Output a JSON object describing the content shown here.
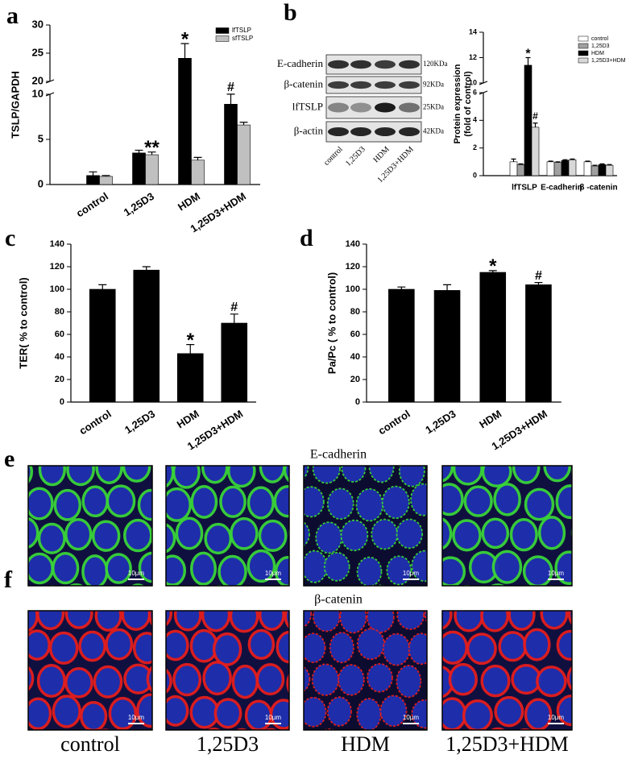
{
  "chart_data": [
    {
      "type": "bar",
      "panel": "a",
      "ylabel": "TSLP/GAPDH",
      "categories": [
        "control",
        "1,25D3",
        "HDM",
        "1,25D3+HDM"
      ],
      "series": [
        {
          "name": "lfTSLP",
          "color": "#000000",
          "values": [
            1.0,
            3.5,
            24.1,
            8.9
          ],
          "errors": [
            0.4,
            0.3,
            2.6,
            1.2
          ],
          "annotations": [
            null,
            null,
            "*",
            "#"
          ]
        },
        {
          "name": "sfTSLP",
          "color": "#c0c0c0",
          "values": [
            0.9,
            3.3,
            2.7,
            6.6
          ],
          "errors": [
            0.1,
            0.3,
            0.3,
            0.3
          ],
          "annotations": [
            null,
            "**",
            null,
            null
          ]
        }
      ],
      "ylim": [
        0,
        30
      ],
      "ybreak": [
        10,
        20
      ],
      "yticks": [
        0,
        5,
        10,
        20,
        25,
        30
      ]
    },
    {
      "type": "bar",
      "panel": "b",
      "ylabel": [
        "Protein expression",
        "(fold of control)"
      ],
      "categories": [
        "lfTSLP",
        "E-cadherin",
        "β -catenin"
      ],
      "series": [
        {
          "name": "control",
          "color": "#ffffff",
          "values": [
            1.0,
            1.0,
            1.0
          ],
          "errors": [
            0.2,
            0.05,
            0.05
          ],
          "annotations": [
            null,
            null,
            null
          ]
        },
        {
          "name": "1,25D3",
          "color": "#a0a0a0",
          "values": [
            0.8,
            0.95,
            0.7
          ],
          "errors": [
            0.05,
            0.05,
            0.05
          ],
          "annotations": [
            null,
            null,
            null
          ]
        },
        {
          "name": "HDM",
          "color": "#000000",
          "values": [
            11.4,
            1.1,
            0.8
          ],
          "errors": [
            0.6,
            0.05,
            0.05
          ],
          "annotations": [
            "*",
            null,
            null
          ]
        },
        {
          "name": "1,25D3+HDM",
          "color": "#d8d8d8",
          "values": [
            3.5,
            1.15,
            0.75
          ],
          "errors": [
            0.3,
            0.05,
            0.05
          ],
          "annotations": [
            "#",
            null,
            null
          ]
        }
      ],
      "ylim": [
        0,
        14
      ],
      "ybreak": [
        6,
        10
      ],
      "yticks": [
        0,
        2,
        4,
        6,
        10,
        12,
        14
      ]
    },
    {
      "type": "bar",
      "panel": "c",
      "ylabel": "TER( %  to  control)",
      "categories": [
        "control",
        "1,25D3",
        "HDM",
        "1,25D3+HDM"
      ],
      "series": [
        {
          "name": null,
          "color": "#000000",
          "values": [
            100,
            117,
            43,
            70
          ],
          "errors": [
            4,
            3,
            8,
            8
          ],
          "annotations": [
            null,
            null,
            "*",
            "#"
          ]
        }
      ],
      "ylim": [
        0,
        140
      ],
      "yticks": [
        0,
        20,
        40,
        60,
        80,
        100,
        120,
        140
      ]
    },
    {
      "type": "bar",
      "panel": "d",
      "ylabel": "Pa/Pc ( %  to  control)",
      "categories": [
        "control",
        "1,25D3",
        "HDM",
        "1,25D3+HDM"
      ],
      "series": [
        {
          "name": null,
          "color": "#000000",
          "values": [
            100,
            99,
            115,
            104
          ],
          "errors": [
            2,
            5,
            1.5,
            2
          ],
          "annotations": [
            null,
            null,
            "*",
            "#"
          ]
        }
      ],
      "ylim": [
        0,
        140
      ],
      "yticks": [
        0,
        20,
        40,
        60,
        80,
        100,
        120,
        140
      ]
    }
  ],
  "blot": {
    "rows": [
      {
        "label": "E-cadherin",
        "size": "120KDa"
      },
      {
        "label": "β-catenin",
        "size": "92KDa"
      },
      {
        "label": "lfTSLP",
        "size": "25KDa"
      },
      {
        "label": "β-actin",
        "size": "42KDa"
      }
    ],
    "lanes": [
      "control",
      "1,25D3",
      "HDM",
      "1,25D3+HDM"
    ]
  },
  "microscopy": {
    "panels": [
      {
        "letter": "e",
        "title": "E-cadherin"
      },
      {
        "letter": "f",
        "title": "β-catenin"
      }
    ],
    "conditions": [
      "control",
      "1,25D3",
      "HDM",
      "1,25D3+HDM"
    ],
    "scale_bar": "10μm"
  }
}
